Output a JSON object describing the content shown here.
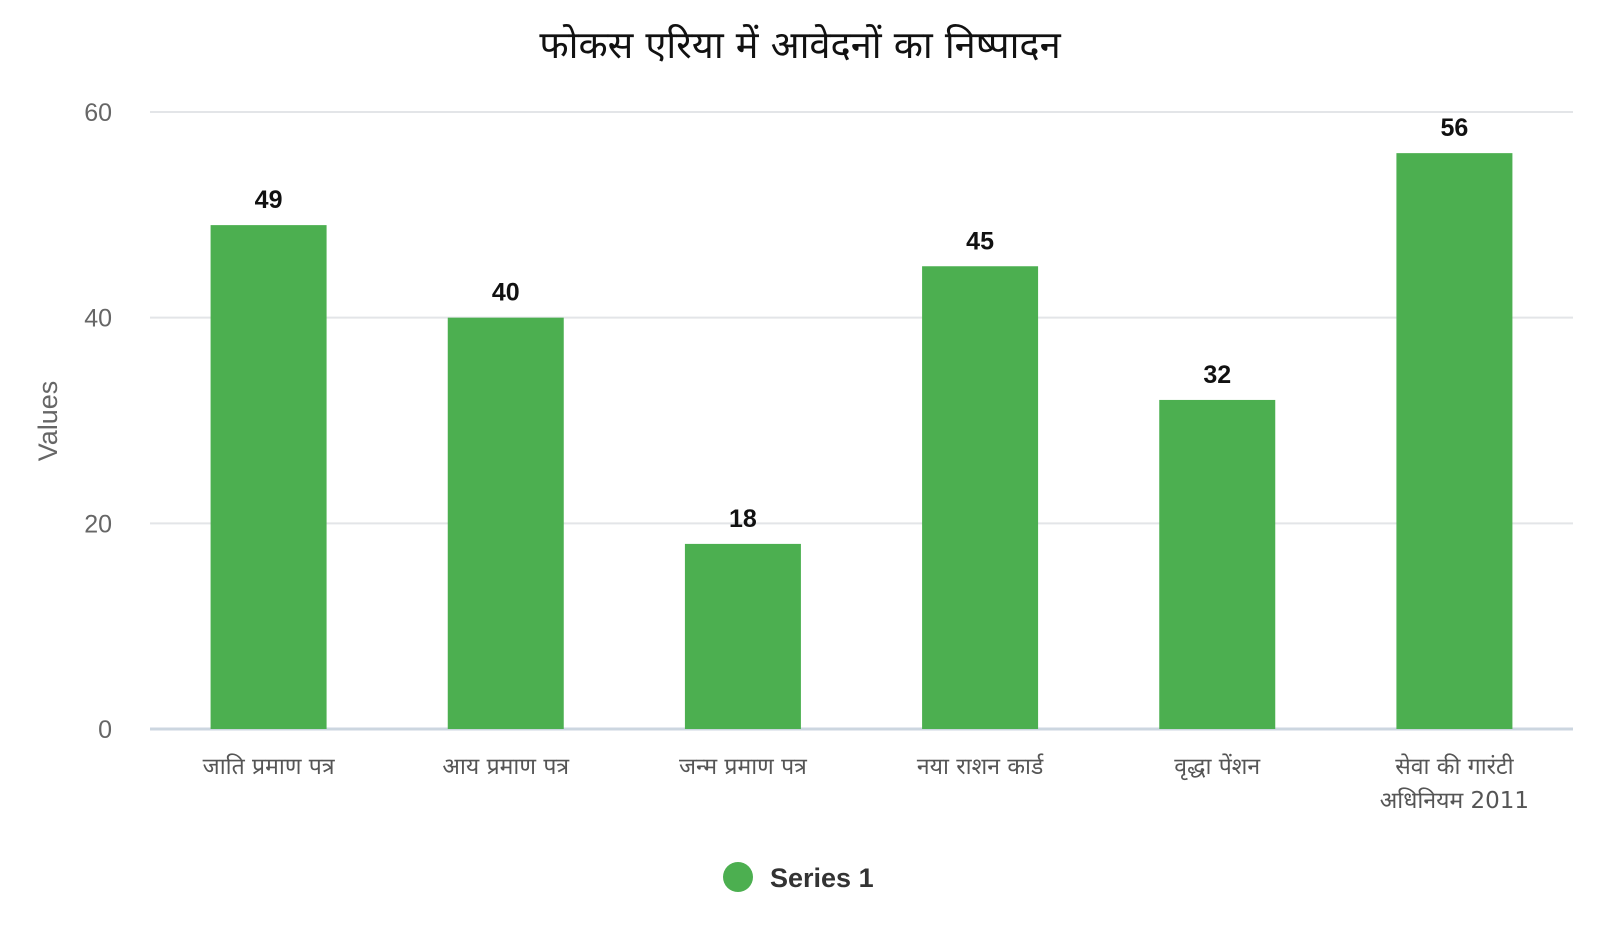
{
  "chart_data": {
    "type": "bar",
    "title": "फोकस एरिया में आवेदनों का निष्पादन",
    "xlabel": "",
    "ylabel": "Values",
    "categories": [
      [
        "जाति प्रमाण पत्र"
      ],
      [
        "आय प्रमाण पत्र"
      ],
      [
        "जन्म प्रमाण पत्र"
      ],
      [
        "नया राशन कार्ड"
      ],
      [
        "वृद्धा पेंशन"
      ],
      [
        "सेवा की गारंटी",
        "अधिनियम 2011"
      ]
    ],
    "series": [
      {
        "name": "Series 1",
        "color": "#4caf50",
        "values": [
          49,
          40,
          18,
          45,
          32,
          56
        ]
      }
    ],
    "ylim": [
      0,
      60
    ],
    "yticks": [
      0,
      20,
      40,
      60
    ],
    "grid": true,
    "legend_position": "bottom",
    "data_labels": true
  }
}
